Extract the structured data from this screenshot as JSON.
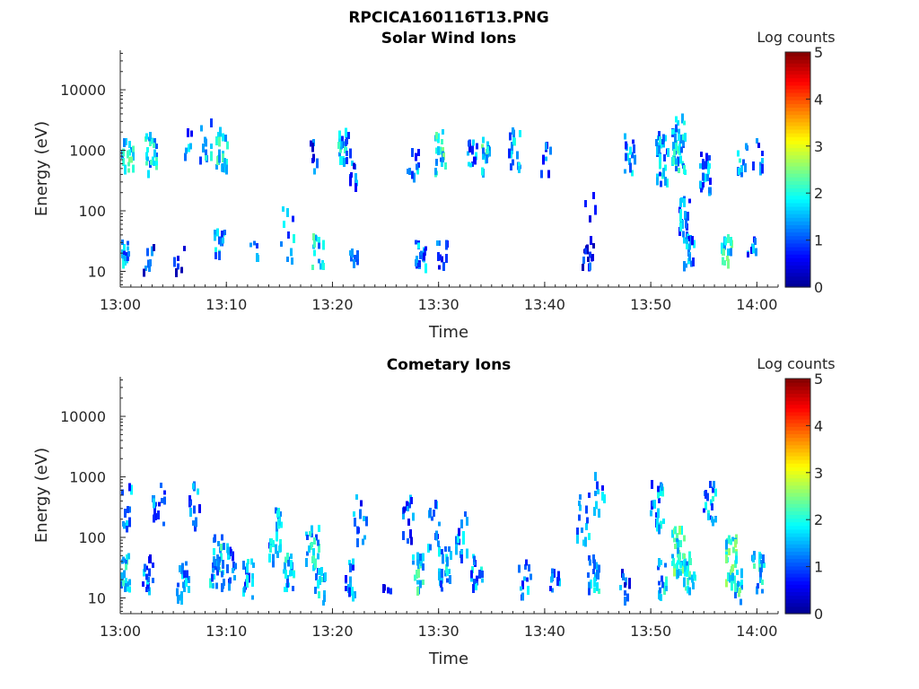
{
  "figure_title": "RPCICA160116T13.PNG",
  "colors": {
    "colormap": [
      "#00008f",
      "#0000ff",
      "#0080ff",
      "#00ffff",
      "#80ff80",
      "#ffff00",
      "#ff8000",
      "#ff0000",
      "#800000"
    ],
    "axis": "#262626",
    "background": "#ffffff"
  },
  "chart_data": [
    {
      "type": "heatmap",
      "title": "Solar Wind Ions",
      "xlabel": "Time",
      "ylabel": "Energy (eV)",
      "x_ticks": [
        "13:00",
        "13:10",
        "13:20",
        "13:30",
        "13:40",
        "13:50",
        "14:00"
      ],
      "x_range_min": [
        0,
        62
      ],
      "y_scale": "log",
      "y_ticks": [
        10,
        100,
        1000,
        10000
      ],
      "y_tick_labels": [
        "10",
        "100",
        "1000",
        "10000"
      ],
      "y_range": [
        5.5,
        45000
      ],
      "colorbar": {
        "label": "Log counts",
        "range": [
          0,
          5
        ],
        "ticks": [
          "0",
          "1",
          "2",
          "3",
          "4",
          "5"
        ]
      },
      "clusters": [
        {
          "t": 0.3,
          "e": 20,
          "s": 0.2,
          "n": 18,
          "c": 1.3
        },
        {
          "t": 0.6,
          "e": 800,
          "s": 0.25,
          "n": 20,
          "c": 1.9
        },
        {
          "t": 2.5,
          "e": 15,
          "s": 0.25,
          "n": 8,
          "c": 0.9
        },
        {
          "t": 2.8,
          "e": 900,
          "s": 0.35,
          "n": 25,
          "c": 1.6
        },
        {
          "t": 5.5,
          "e": 15,
          "s": 0.2,
          "n": 6,
          "c": 0.4
        },
        {
          "t": 6.5,
          "e": 1000,
          "s": 0.3,
          "n": 6,
          "c": 1.2
        },
        {
          "t": 8.0,
          "e": 1500,
          "s": 0.35,
          "n": 12,
          "c": 1.5
        },
        {
          "t": 9.2,
          "e": 25,
          "s": 0.25,
          "n": 14,
          "c": 1.4
        },
        {
          "t": 9.5,
          "e": 900,
          "s": 0.35,
          "n": 22,
          "c": 2.0
        },
        {
          "t": 12.5,
          "e": 20,
          "s": 0.2,
          "n": 6,
          "c": 1.0
        },
        {
          "t": 15.7,
          "e": 40,
          "s": 0.5,
          "n": 10,
          "c": 1.3
        },
        {
          "t": 18.0,
          "e": 700,
          "s": 0.3,
          "n": 8,
          "c": 1.0
        },
        {
          "t": 18.5,
          "e": 20,
          "s": 0.3,
          "n": 14,
          "c": 1.7
        },
        {
          "t": 21.0,
          "e": 1000,
          "s": 0.3,
          "n": 22,
          "c": 1.5
        },
        {
          "t": 21.8,
          "e": 18,
          "s": 0.2,
          "n": 8,
          "c": 1.0
        },
        {
          "t": 22.0,
          "e": 400,
          "s": 0.25,
          "n": 10,
          "c": 1.0
        },
        {
          "t": 27.5,
          "e": 600,
          "s": 0.3,
          "n": 10,
          "c": 1.3
        },
        {
          "t": 28.2,
          "e": 20,
          "s": 0.25,
          "n": 18,
          "c": 1.2
        },
        {
          "t": 30.0,
          "e": 900,
          "s": 0.35,
          "n": 22,
          "c": 1.8
        },
        {
          "t": 30.2,
          "e": 20,
          "s": 0.25,
          "n": 10,
          "c": 1.1
        },
        {
          "t": 33.0,
          "e": 1000,
          "s": 0.35,
          "n": 14,
          "c": 1.2
        },
        {
          "t": 34.5,
          "e": 800,
          "s": 0.3,
          "n": 16,
          "c": 1.8
        },
        {
          "t": 37.0,
          "e": 1000,
          "s": 0.35,
          "n": 18,
          "c": 1.5
        },
        {
          "t": 40.0,
          "e": 800,
          "s": 0.3,
          "n": 8,
          "c": 1.2
        },
        {
          "t": 44.0,
          "e": 20,
          "s": 0.25,
          "n": 14,
          "c": 0.6
        },
        {
          "t": 44.3,
          "e": 120,
          "s": 0.35,
          "n": 5,
          "c": 0.9
        },
        {
          "t": 48.0,
          "e": 800,
          "s": 0.35,
          "n": 14,
          "c": 1.3
        },
        {
          "t": 51.0,
          "e": 700,
          "s": 0.4,
          "n": 30,
          "c": 1.4
        },
        {
          "t": 52.5,
          "e": 1200,
          "s": 0.45,
          "n": 40,
          "c": 1.7
        },
        {
          "t": 53.0,
          "e": 80,
          "s": 0.35,
          "n": 20,
          "c": 1.3
        },
        {
          "t": 53.5,
          "e": 20,
          "s": 0.25,
          "n": 20,
          "c": 1.3
        },
        {
          "t": 55.0,
          "e": 400,
          "s": 0.35,
          "n": 22,
          "c": 1.2
        },
        {
          "t": 57.0,
          "e": 22,
          "s": 0.25,
          "n": 18,
          "c": 1.9
        },
        {
          "t": 58.5,
          "e": 800,
          "s": 0.3,
          "n": 10,
          "c": 1.5
        },
        {
          "t": 59.5,
          "e": 20,
          "s": 0.25,
          "n": 8,
          "c": 1.2
        },
        {
          "t": 60.0,
          "e": 800,
          "s": 0.3,
          "n": 8,
          "c": 1.2
        }
      ]
    },
    {
      "type": "heatmap",
      "title": "Cometary Ions",
      "xlabel": "Time",
      "ylabel": "Energy (eV)",
      "x_ticks": [
        "13:00",
        "13:10",
        "13:20",
        "13:30",
        "13:40",
        "13:50",
        "14:00"
      ],
      "x_range_min": [
        0,
        62
      ],
      "y_scale": "log",
      "y_ticks": [
        10,
        100,
        1000,
        10000
      ],
      "y_tick_labels": [
        "10",
        "100",
        "1000",
        "10000"
      ],
      "y_range": [
        5.5,
        45000
      ],
      "colorbar": {
        "label": "Log counts",
        "range": [
          0,
          5
        ],
        "ticks": [
          "0",
          "1",
          "2",
          "3",
          "4",
          "5"
        ]
      },
      "clusters": [
        {
          "t": 0.3,
          "e": 25,
          "s": 0.3,
          "n": 25,
          "c": 1.7
        },
        {
          "t": 0.5,
          "e": 300,
          "s": 0.35,
          "n": 12,
          "c": 1.3
        },
        {
          "t": 2.5,
          "e": 25,
          "s": 0.3,
          "n": 18,
          "c": 1.2
        },
        {
          "t": 3.5,
          "e": 400,
          "s": 0.4,
          "n": 14,
          "c": 1.0
        },
        {
          "t": 5.8,
          "e": 20,
          "s": 0.35,
          "n": 22,
          "c": 1.5
        },
        {
          "t": 7.0,
          "e": 300,
          "s": 0.4,
          "n": 12,
          "c": 1.2
        },
        {
          "t": 9.0,
          "e": 40,
          "s": 0.45,
          "n": 35,
          "c": 1.6
        },
        {
          "t": 10.5,
          "e": 30,
          "s": 0.35,
          "n": 16,
          "c": 1.3
        },
        {
          "t": 12.0,
          "e": 20,
          "s": 0.3,
          "n": 18,
          "c": 1.4
        },
        {
          "t": 14.5,
          "e": 100,
          "s": 0.45,
          "n": 26,
          "c": 1.4
        },
        {
          "t": 15.8,
          "e": 25,
          "s": 0.3,
          "n": 20,
          "c": 1.7
        },
        {
          "t": 18.0,
          "e": 60,
          "s": 0.4,
          "n": 22,
          "c": 1.6
        },
        {
          "t": 18.8,
          "e": 15,
          "s": 0.3,
          "n": 14,
          "c": 1.5
        },
        {
          "t": 21.5,
          "e": 20,
          "s": 0.3,
          "n": 14,
          "c": 1.3
        },
        {
          "t": 22.5,
          "e": 200,
          "s": 0.4,
          "n": 12,
          "c": 1.1
        },
        {
          "t": 25.0,
          "e": 10,
          "s": 0.2,
          "n": 4,
          "c": 0.9
        },
        {
          "t": 27.0,
          "e": 200,
          "s": 0.4,
          "n": 14,
          "c": 1.1
        },
        {
          "t": 28.0,
          "e": 25,
          "s": 0.3,
          "n": 20,
          "c": 1.8
        },
        {
          "t": 29.5,
          "e": 150,
          "s": 0.4,
          "n": 16,
          "c": 1.3
        },
        {
          "t": 30.5,
          "e": 30,
          "s": 0.35,
          "n": 22,
          "c": 1.5
        },
        {
          "t": 32.0,
          "e": 100,
          "s": 0.4,
          "n": 18,
          "c": 1.3
        },
        {
          "t": 33.5,
          "e": 30,
          "s": 0.35,
          "n": 16,
          "c": 1.4
        },
        {
          "t": 38.0,
          "e": 20,
          "s": 0.3,
          "n": 12,
          "c": 1.2
        },
        {
          "t": 41.0,
          "e": 15,
          "s": 0.3,
          "n": 10,
          "c": 1.2
        },
        {
          "t": 43.5,
          "e": 200,
          "s": 0.4,
          "n": 14,
          "c": 1.4
        },
        {
          "t": 44.5,
          "e": 25,
          "s": 0.3,
          "n": 20,
          "c": 1.6
        },
        {
          "t": 45.0,
          "e": 500,
          "s": 0.4,
          "n": 10,
          "c": 1.2
        },
        {
          "t": 47.5,
          "e": 15,
          "s": 0.25,
          "n": 10,
          "c": 1.0
        },
        {
          "t": 50.5,
          "e": 300,
          "s": 0.4,
          "n": 22,
          "c": 1.4
        },
        {
          "t": 51.0,
          "e": 20,
          "s": 0.3,
          "n": 16,
          "c": 1.6
        },
        {
          "t": 52.5,
          "e": 60,
          "s": 0.4,
          "n": 38,
          "c": 2.0
        },
        {
          "t": 53.5,
          "e": 25,
          "s": 0.3,
          "n": 22,
          "c": 1.8
        },
        {
          "t": 55.5,
          "e": 300,
          "s": 0.4,
          "n": 20,
          "c": 1.4
        },
        {
          "t": 57.5,
          "e": 40,
          "s": 0.4,
          "n": 32,
          "c": 2.0
        },
        {
          "t": 58.0,
          "e": 15,
          "s": 0.3,
          "n": 16,
          "c": 1.8
        },
        {
          "t": 60.0,
          "e": 25,
          "s": 0.35,
          "n": 18,
          "c": 1.6
        }
      ]
    }
  ]
}
